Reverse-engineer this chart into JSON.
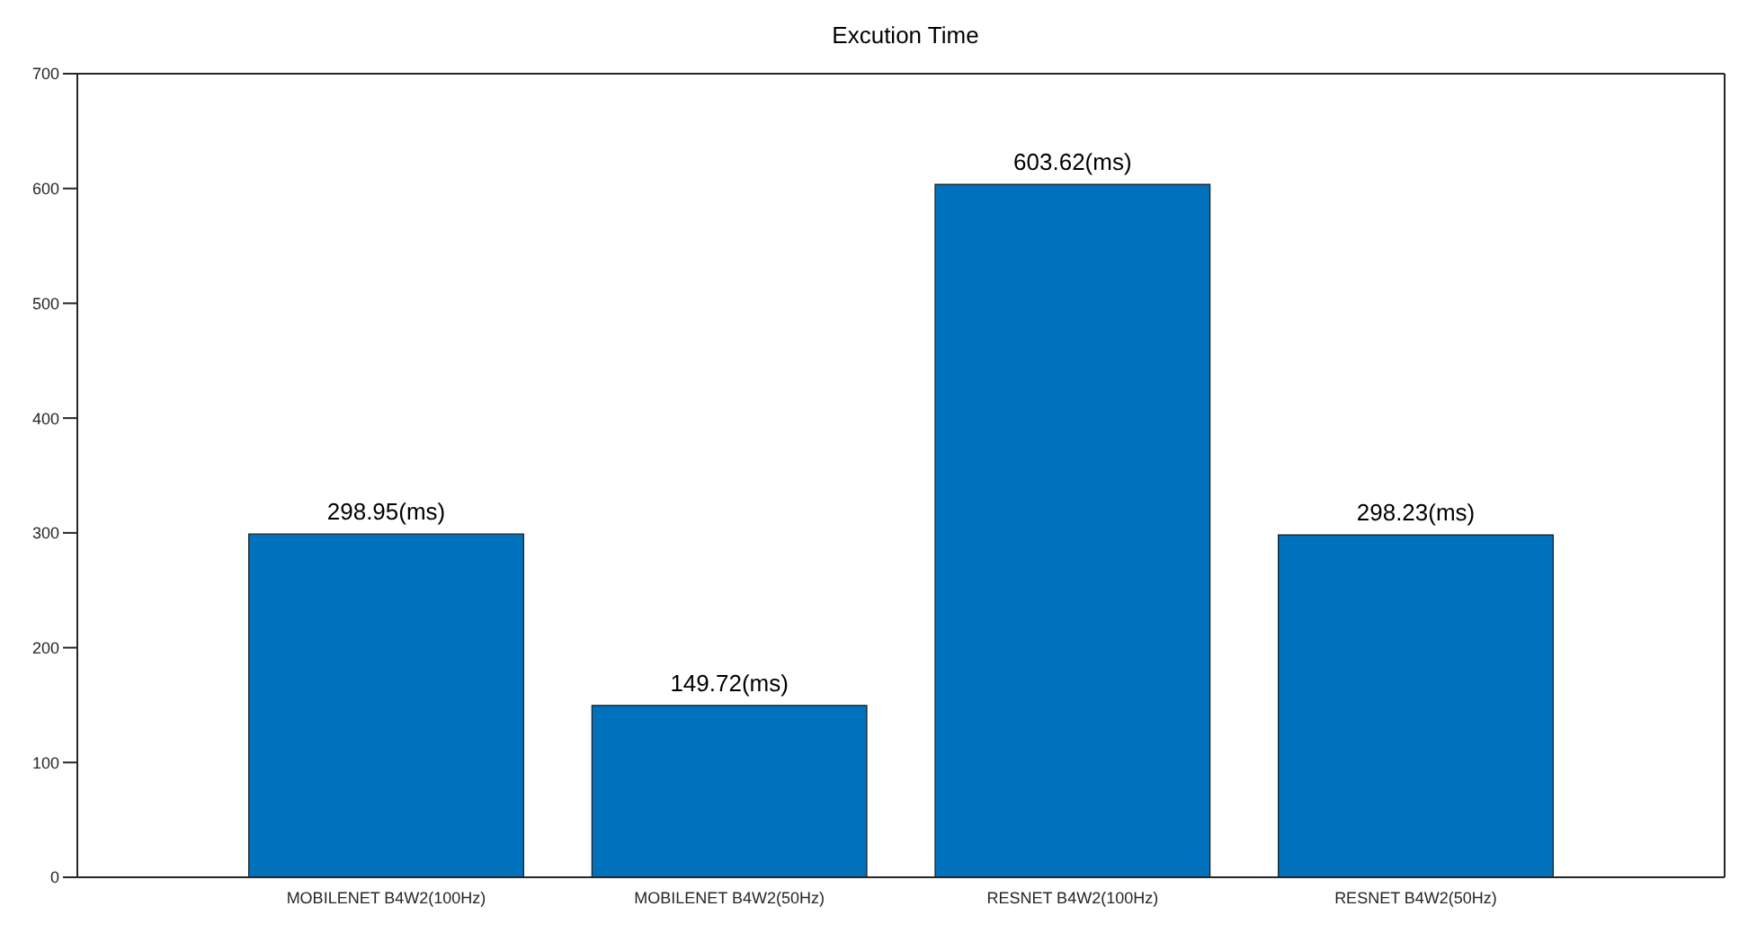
{
  "chart_data": {
    "type": "bar",
    "title": "Excution Time",
    "categories": [
      "MOBILENET B4W2(100Hz)",
      "MOBILENET B4W2(50Hz)",
      "RESNET B4W2(100Hz)",
      "RESNET B4W2(50Hz)"
    ],
    "values": [
      298.95,
      149.72,
      603.62,
      298.23
    ],
    "value_labels": [
      "298.95(ms)",
      "149.72(ms)",
      "603.62(ms)",
      "298.23(ms)"
    ],
    "color": "#0072bd",
    "ylim": [
      0,
      700
    ],
    "yticks": [
      0,
      100,
      200,
      300,
      400,
      500,
      600,
      700
    ],
    "grid": false
  }
}
